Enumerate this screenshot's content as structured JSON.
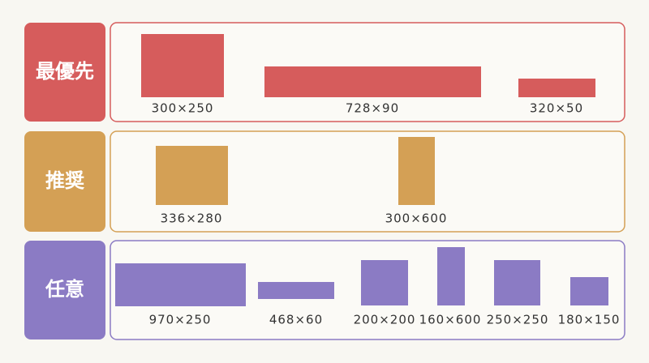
{
  "rows": [
    {
      "label": "最優先",
      "sizes": [
        "300×250",
        "728×90",
        "320×50"
      ]
    },
    {
      "label": "推奨",
      "sizes": [
        "336×280",
        "300×600"
      ]
    },
    {
      "label": "任意",
      "sizes": [
        "970×250",
        "468×60",
        "200×200",
        "160×600",
        "250×250",
        "180×150"
      ]
    }
  ]
}
